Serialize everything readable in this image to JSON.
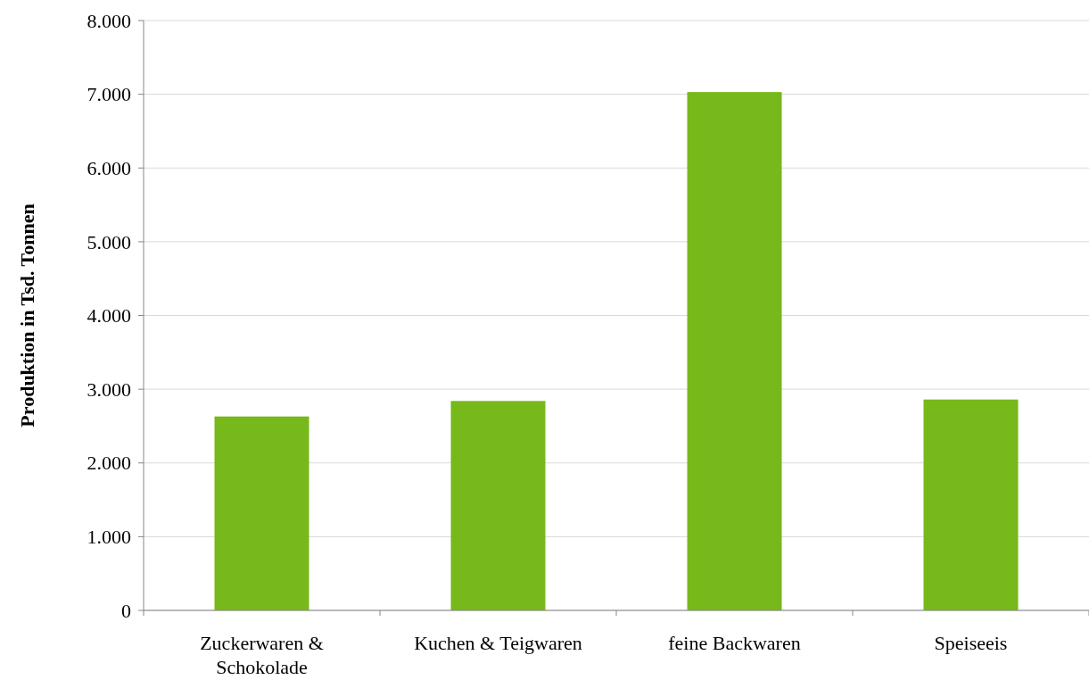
{
  "chart_data": {
    "type": "bar",
    "ylabel": "Produktion in Tsd. Tonnen",
    "categories": [
      "Zuckerwaren & Schokolade",
      "Kuchen & Teigwaren",
      "feine Backwaren",
      "Speiseeis"
    ],
    "values": [
      2630,
      2840,
      7030,
      2860
    ],
    "color": "#77b81a",
    "ylim": [
      0,
      8000
    ],
    "yticks": [
      {
        "value": 0,
        "label": "0"
      },
      {
        "value": 1000,
        "label": "1.000"
      },
      {
        "value": 2000,
        "label": "2.000"
      },
      {
        "value": 3000,
        "label": "3.000"
      },
      {
        "value": 4000,
        "label": "4.000"
      },
      {
        "value": 5000,
        "label": "5.000"
      },
      {
        "value": 6000,
        "label": "6.000"
      },
      {
        "value": 7000,
        "label": "7.000"
      },
      {
        "value": 8000,
        "label": "8.000"
      }
    ],
    "grid": "y"
  }
}
